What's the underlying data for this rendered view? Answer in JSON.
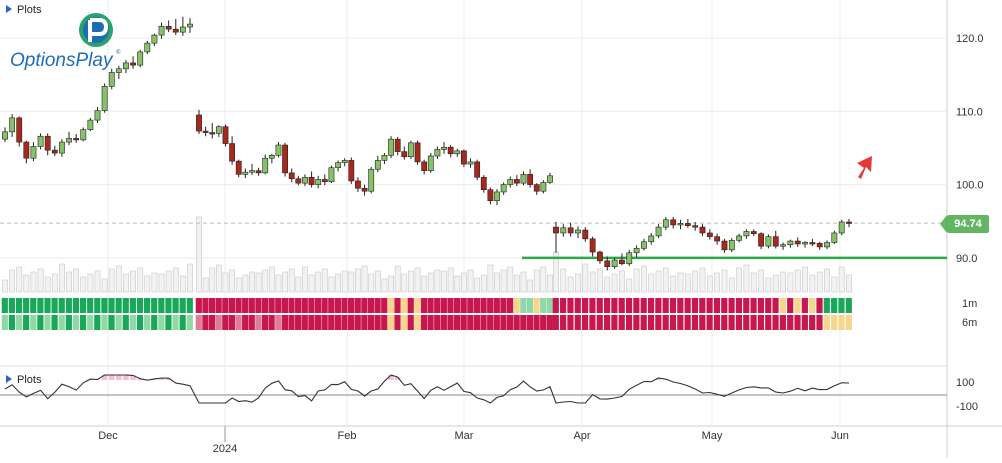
{
  "chart_data": {
    "type": "candlestick",
    "title": "",
    "x_ticks": [
      "Dec",
      "2024",
      "Feb",
      "Mar",
      "Apr",
      "May",
      "Jun"
    ],
    "y_ticks": [
      120.0,
      110.0,
      100.0,
      90.0
    ],
    "y_range": [
      83,
      126
    ],
    "current_price": 94.74,
    "support_level": 90.0,
    "panels": {
      "top_label": "Plots",
      "bottom_label": "Plots",
      "heatmap_rows": [
        "1m",
        "6m"
      ],
      "oscillator_ticks": [
        "100",
        "-100"
      ]
    },
    "candles": [
      [
        106.2,
        107.8,
        105.8,
        107.2
      ],
      [
        107.2,
        109.6,
        106.5,
        109.1
      ],
      [
        109.1,
        109.3,
        105.2,
        105.8
      ],
      [
        105.8,
        106.0,
        102.9,
        103.6
      ],
      [
        103.6,
        105.8,
        103.2,
        105.2
      ],
      [
        105.2,
        107.0,
        104.8,
        106.6
      ],
      [
        106.6,
        107.0,
        104.0,
        104.7
      ],
      [
        104.7,
        105.3,
        103.9,
        104.3
      ],
      [
        104.3,
        106.2,
        103.8,
        105.8
      ],
      [
        105.8,
        107.2,
        105.4,
        106.3
      ],
      [
        106.3,
        106.9,
        105.7,
        106.1
      ],
      [
        106.1,
        107.8,
        105.9,
        107.5
      ],
      [
        107.5,
        109.1,
        107.3,
        108.8
      ],
      [
        108.8,
        110.6,
        108.4,
        110.1
      ],
      [
        110.1,
        113.8,
        109.8,
        113.4
      ],
      [
        113.4,
        115.8,
        113.0,
        115.3
      ],
      [
        115.3,
        116.2,
        114.4,
        115.8
      ],
      [
        115.8,
        117.0,
        115.2,
        116.6
      ],
      [
        116.6,
        117.5,
        115.8,
        116.3
      ],
      [
        116.3,
        118.4,
        116.0,
        118.1
      ],
      [
        118.1,
        119.6,
        117.8,
        119.3
      ],
      [
        119.3,
        120.6,
        118.9,
        120.4
      ],
      [
        120.4,
        122.1,
        119.9,
        121.6
      ],
      [
        121.6,
        122.4,
        120.8,
        121.2
      ],
      [
        121.2,
        122.6,
        120.4,
        120.8
      ],
      [
        120.8,
        122.9,
        120.3,
        121.5
      ],
      [
        121.5,
        122.7,
        120.7,
        121.9
      ],
      [
        109.5,
        110.2,
        106.9,
        107.3
      ],
      [
        107.3,
        107.9,
        106.6,
        107.1
      ],
      [
        107.1,
        108.4,
        106.3,
        107.0
      ],
      [
        107.0,
        108.1,
        106.5,
        107.9
      ],
      [
        107.9,
        108.2,
        105.2,
        105.6
      ],
      [
        105.6,
        106.6,
        102.7,
        103.2
      ],
      [
        103.2,
        103.4,
        101.0,
        101.4
      ],
      [
        101.4,
        102.2,
        100.9,
        101.7
      ],
      [
        101.7,
        102.8,
        101.3,
        101.9
      ],
      [
        101.9,
        102.3,
        101.2,
        101.6
      ],
      [
        101.6,
        104.1,
        101.4,
        103.6
      ],
      [
        103.6,
        104.2,
        102.9,
        104.0
      ],
      [
        104.0,
        105.8,
        103.7,
        105.4
      ],
      [
        105.4,
        105.7,
        101.1,
        101.6
      ],
      [
        101.6,
        102.2,
        100.3,
        100.8
      ],
      [
        100.8,
        101.2,
        99.9,
        100.2
      ],
      [
        100.2,
        101.4,
        99.8,
        101.0
      ],
      [
        101.0,
        101.8,
        99.6,
        100.0
      ],
      [
        100.0,
        101.2,
        99.5,
        100.7
      ],
      [
        100.7,
        101.4,
        99.9,
        100.4
      ],
      [
        100.4,
        102.6,
        100.2,
        102.3
      ],
      [
        102.3,
        103.3,
        101.8,
        103.0
      ],
      [
        103.0,
        103.6,
        102.5,
        103.3
      ],
      [
        103.3,
        103.7,
        100.1,
        100.5
      ],
      [
        100.5,
        101.0,
        99.0,
        99.5
      ],
      [
        99.5,
        100.0,
        98.5,
        99.1
      ],
      [
        99.1,
        102.4,
        98.8,
        102.1
      ],
      [
        102.1,
        103.9,
        101.7,
        103.3
      ],
      [
        103.3,
        104.3,
        102.8,
        104.0
      ],
      [
        104.0,
        106.6,
        103.6,
        106.2
      ],
      [
        106.2,
        106.5,
        104.0,
        104.5
      ],
      [
        104.5,
        105.2,
        103.4,
        103.8
      ],
      [
        103.8,
        106.0,
        103.5,
        105.7
      ],
      [
        105.7,
        106.0,
        102.7,
        103.1
      ],
      [
        103.1,
        103.4,
        101.4,
        101.9
      ],
      [
        101.9,
        104.3,
        101.6,
        103.9
      ],
      [
        103.9,
        105.2,
        103.5,
        104.8
      ],
      [
        104.8,
        105.8,
        104.2,
        105.1
      ],
      [
        105.1,
        105.4,
        103.7,
        104.2
      ],
      [
        104.2,
        104.9,
        103.8,
        104.6
      ],
      [
        104.6,
        104.8,
        102.4,
        102.8
      ],
      [
        102.8,
        103.6,
        102.3,
        103.1
      ],
      [
        103.1,
        103.4,
        100.6,
        101.0
      ],
      [
        101.0,
        101.3,
        98.9,
        99.3
      ],
      [
        99.3,
        99.6,
        97.3,
        97.8
      ],
      [
        97.8,
        99.4,
        97.2,
        99.0
      ],
      [
        99.0,
        100.3,
        98.6,
        100.0
      ],
      [
        100.0,
        101.1,
        99.6,
        100.7
      ],
      [
        100.7,
        101.3,
        99.8,
        100.2
      ],
      [
        100.2,
        101.8,
        99.9,
        101.4
      ],
      [
        101.4,
        102.1,
        99.6,
        100.0
      ],
      [
        100.0,
        100.2,
        98.6,
        99.1
      ],
      [
        99.1,
        100.6,
        98.8,
        100.3
      ],
      [
        100.3,
        101.6,
        100.1,
        101.2
      ],
      [
        94.2,
        94.9,
        90.7,
        93.4
      ],
      [
        93.4,
        94.6,
        92.9,
        94.1
      ],
      [
        94.1,
        94.8,
        92.9,
        93.4
      ],
      [
        93.4,
        94.3,
        92.7,
        93.8
      ],
      [
        93.8,
        94.2,
        92.2,
        92.6
      ],
      [
        92.6,
        92.9,
        90.2,
        90.8
      ],
      [
        90.8,
        91.0,
        89.2,
        89.6
      ],
      [
        89.6,
        90.2,
        88.3,
        88.8
      ],
      [
        88.8,
        90.0,
        88.5,
        89.7
      ],
      [
        89.7,
        90.6,
        89.0,
        89.2
      ],
      [
        89.2,
        91.1,
        88.9,
        90.7
      ],
      [
        90.7,
        91.7,
        90.1,
        91.3
      ],
      [
        91.3,
        92.6,
        91.0,
        92.2
      ],
      [
        92.2,
        93.4,
        91.8,
        93.0
      ],
      [
        93.0,
        94.6,
        92.7,
        94.2
      ],
      [
        94.2,
        95.6,
        93.8,
        95.2
      ],
      [
        95.2,
        95.6,
        94.0,
        94.5
      ],
      [
        94.5,
        95.2,
        93.9,
        94.7
      ],
      [
        94.7,
        95.3,
        94.1,
        94.4
      ],
      [
        94.4,
        94.9,
        93.7,
        94.2
      ],
      [
        94.2,
        94.6,
        93.0,
        93.4
      ],
      [
        93.4,
        93.9,
        92.5,
        92.9
      ],
      [
        92.9,
        93.3,
        91.8,
        92.3
      ],
      [
        92.3,
        92.6,
        90.7,
        91.1
      ],
      [
        91.1,
        92.7,
        90.8,
        92.4
      ],
      [
        92.4,
        93.3,
        92.1,
        93.0
      ],
      [
        93.0,
        93.9,
        92.6,
        93.6
      ],
      [
        93.6,
        93.9,
        93.0,
        93.3
      ],
      [
        93.3,
        93.5,
        91.2,
        91.6
      ],
      [
        91.6,
        93.2,
        91.3,
        92.9
      ],
      [
        92.9,
        93.7,
        91.3,
        91.6
      ],
      [
        91.6,
        92.1,
        91.1,
        91.8
      ],
      [
        91.8,
        92.5,
        91.4,
        92.3
      ],
      [
        92.3,
        92.8,
        91.5,
        91.9
      ],
      [
        91.9,
        92.3,
        91.4,
        92.1
      ],
      [
        92.1,
        92.6,
        91.6,
        92.0
      ],
      [
        92.0,
        92.2,
        91.1,
        91.5
      ],
      [
        91.5,
        92.4,
        91.2,
        92.1
      ],
      [
        92.1,
        93.7,
        91.9,
        93.4
      ],
      [
        93.4,
        95.2,
        93.1,
        94.9
      ],
      [
        94.9,
        95.3,
        94.2,
        94.74
      ]
    ]
  }
}
